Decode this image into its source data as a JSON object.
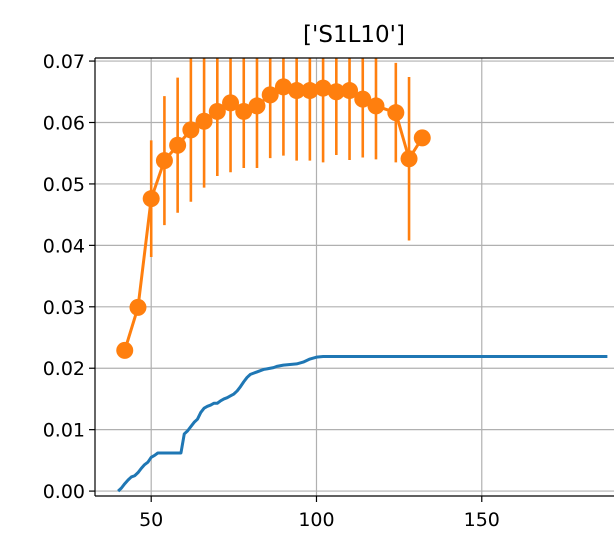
{
  "chart_data": {
    "type": "line",
    "title": "['S1L10']",
    "xlabel": "",
    "ylabel": "",
    "xlim": [
      33,
      190
    ],
    "ylim": [
      -0.0008,
      0.0705
    ],
    "grid": true,
    "xticks": [
      50,
      100,
      150
    ],
    "xtick_labels": [
      "50",
      "100",
      "150"
    ],
    "yticks": [
      0.0,
      0.01,
      0.02,
      0.03,
      0.04,
      0.05,
      0.06,
      0.07
    ],
    "ytick_labels": [
      "0.00",
      "0.01",
      "0.02",
      "0.03",
      "0.04",
      "0.05",
      "0.06",
      "0.07"
    ],
    "series": [
      {
        "kind": "step-line",
        "color": "#1f77b4",
        "x": [
          40,
          41,
          42,
          43,
          44,
          45,
          46,
          47,
          48,
          49,
          50,
          51,
          52,
          53,
          54,
          55,
          56,
          57,
          58,
          59,
          60,
          61,
          62,
          63,
          64,
          65,
          66,
          67,
          68,
          69,
          70,
          71,
          72,
          73,
          74,
          75,
          76,
          77,
          78,
          79,
          80,
          81,
          82,
          83,
          84,
          85,
          86,
          87,
          88,
          89,
          90,
          92,
          94,
          96,
          98,
          100,
          102,
          110,
          120,
          140,
          160,
          188
        ],
        "y": [
          0.0,
          0.0005,
          0.0012,
          0.0018,
          0.0023,
          0.0025,
          0.003,
          0.0037,
          0.0043,
          0.0047,
          0.0055,
          0.0058,
          0.0062,
          0.0062,
          0.0062,
          0.0062,
          0.0062,
          0.0062,
          0.0062,
          0.0062,
          0.0093,
          0.0098,
          0.0105,
          0.0112,
          0.0117,
          0.0128,
          0.0135,
          0.0138,
          0.014,
          0.0143,
          0.0143,
          0.0147,
          0.015,
          0.0152,
          0.0155,
          0.0158,
          0.0163,
          0.017,
          0.0178,
          0.0185,
          0.019,
          0.0192,
          0.0194,
          0.0196,
          0.0198,
          0.0199,
          0.02,
          0.0201,
          0.0203,
          0.0204,
          0.0205,
          0.0206,
          0.0207,
          0.021,
          0.0215,
          0.0218,
          0.0219,
          0.0219,
          0.0219,
          0.0219,
          0.0219,
          0.0219
        ]
      },
      {
        "kind": "errorbar",
        "color": "#ff7f0e",
        "x": [
          42,
          46,
          50,
          54,
          58,
          62,
          66,
          70,
          74,
          78,
          82,
          86,
          90,
          94,
          98,
          102,
          106,
          110,
          114,
          118,
          124,
          128,
          132
        ],
        "y": [
          0.0229,
          0.0299,
          0.0476,
          0.0538,
          0.0563,
          0.0588,
          0.0602,
          0.0618,
          0.0632,
          0.0618,
          0.0627,
          0.0645,
          0.0658,
          0.0652,
          0.0652,
          0.0656,
          0.065,
          0.0652,
          0.0638,
          0.0627,
          0.0616,
          0.0541,
          0.0575
        ],
        "err": [
          0,
          0,
          0.0095,
          0.0105,
          0.011,
          0.0117,
          0.0108,
          0.0105,
          0.0113,
          0.0092,
          0.0101,
          0.0103,
          0.0112,
          0.0114,
          0.0114,
          0.0121,
          0.0103,
          0.0113,
          0.0095,
          0.0087,
          0.0081,
          0.0133,
          0
        ]
      }
    ]
  }
}
